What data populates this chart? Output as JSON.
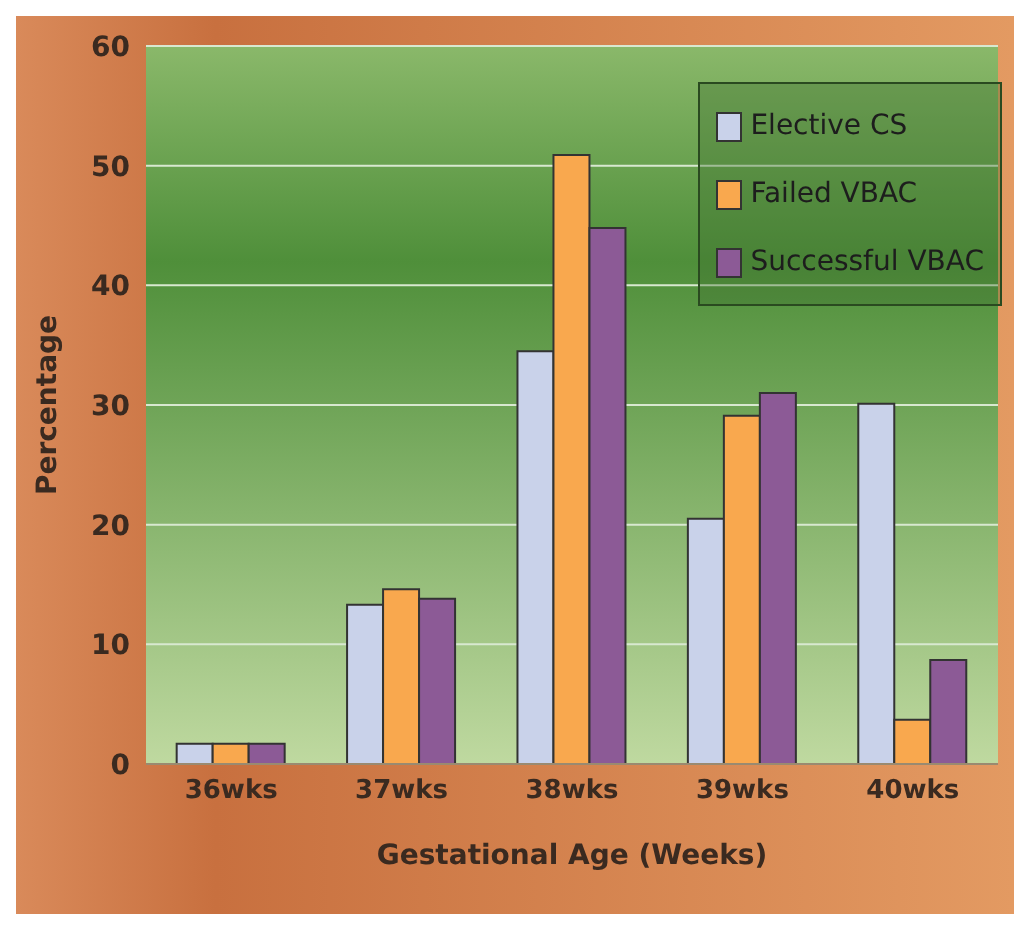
{
  "chart_data": {
    "type": "bar",
    "xlabel": "Gestational Age (Weeks)",
    "ylabel": "Percentage",
    "categories": [
      "36wks",
      "37wks",
      "38wks",
      "39wks",
      "40wks"
    ],
    "series": [
      {
        "name": "Elective CS",
        "color": "#c9d2ea",
        "values": [
          1.7,
          13.3,
          34.5,
          20.5,
          30.1
        ]
      },
      {
        "name": "Failed VBAC",
        "color": "#f9a84e",
        "values": [
          1.7,
          14.6,
          50.9,
          29.1,
          3.7
        ]
      },
      {
        "name": "Successful VBAC",
        "color": "#8c5a96",
        "values": [
          1.7,
          13.8,
          44.8,
          31.0,
          8.7
        ]
      }
    ],
    "ylim": [
      0,
      60
    ],
    "yticks": [
      0,
      10,
      20,
      30,
      40,
      50,
      60
    ],
    "grid": "y",
    "legend": "top right"
  }
}
